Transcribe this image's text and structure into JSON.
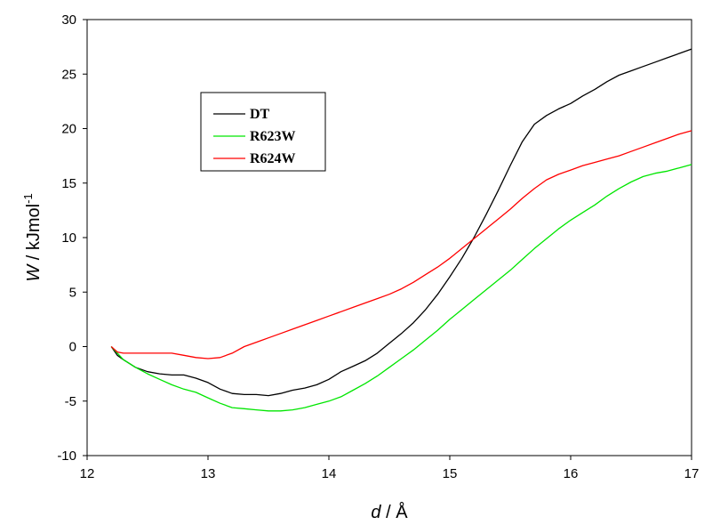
{
  "chart_data": {
    "type": "line",
    "xlabel": {
      "var": "d",
      "unit": " / Å"
    },
    "ylabel": {
      "var": "W",
      "unit": " / kJmol",
      "sup": "-1"
    },
    "xlim": [
      12,
      17
    ],
    "ylim": [
      -10,
      30
    ],
    "xticks": [
      12,
      13,
      14,
      15,
      16,
      17
    ],
    "yticks": [
      -10,
      -5,
      0,
      5,
      10,
      15,
      20,
      25,
      30
    ],
    "grid": false,
    "legend_position": "upper-left",
    "series": [
      {
        "name": "DT",
        "color": "#000000",
        "x": [
          12.2,
          12.25,
          12.3,
          12.4,
          12.5,
          12.6,
          12.7,
          12.8,
          12.9,
          13.0,
          13.1,
          13.2,
          13.3,
          13.4,
          13.5,
          13.6,
          13.7,
          13.8,
          13.9,
          14.0,
          14.1,
          14.2,
          14.3,
          14.4,
          14.5,
          14.6,
          14.7,
          14.8,
          14.9,
          15.0,
          15.1,
          15.2,
          15.3,
          15.4,
          15.5,
          15.6,
          15.7,
          15.8,
          15.9,
          16.0,
          16.1,
          16.2,
          16.3,
          16.4,
          16.5,
          16.6,
          16.7,
          16.8,
          16.9,
          17.0
        ],
        "y": [
          0,
          -0.8,
          -1.2,
          -1.9,
          -2.3,
          -2.5,
          -2.6,
          -2.6,
          -2.9,
          -3.3,
          -3.9,
          -4.3,
          -4.4,
          -4.4,
          -4.5,
          -4.3,
          -4.0,
          -3.8,
          -3.5,
          -3.0,
          -2.3,
          -1.8,
          -1.3,
          -0.6,
          0.3,
          1.2,
          2.2,
          3.4,
          4.8,
          6.4,
          8.1,
          10.0,
          12.1,
          14.3,
          16.6,
          18.8,
          20.4,
          21.2,
          21.8,
          22.3,
          23.0,
          23.6,
          24.3,
          24.9,
          25.3,
          25.7,
          26.1,
          26.5,
          26.9,
          27.3
        ]
      },
      {
        "name": "R623W",
        "color": "#00e600",
        "x": [
          12.2,
          12.3,
          12.4,
          12.5,
          12.6,
          12.7,
          12.8,
          12.9,
          13.0,
          13.1,
          13.2,
          13.3,
          13.4,
          13.5,
          13.6,
          13.7,
          13.8,
          13.9,
          14.0,
          14.1,
          14.2,
          14.3,
          14.4,
          14.5,
          14.6,
          14.7,
          14.8,
          14.9,
          15.0,
          15.1,
          15.2,
          15.3,
          15.4,
          15.5,
          15.6,
          15.7,
          15.8,
          15.9,
          16.0,
          16.1,
          16.2,
          16.3,
          16.4,
          16.5,
          16.6,
          16.7,
          16.8,
          16.9,
          17.0
        ],
        "y": [
          0,
          -1.2,
          -1.9,
          -2.5,
          -3.0,
          -3.5,
          -3.9,
          -4.2,
          -4.7,
          -5.2,
          -5.6,
          -5.7,
          -5.8,
          -5.9,
          -5.9,
          -5.8,
          -5.6,
          -5.3,
          -5.0,
          -4.6,
          -4.0,
          -3.4,
          -2.7,
          -1.9,
          -1.1,
          -0.3,
          0.6,
          1.5,
          2.5,
          3.4,
          4.3,
          5.2,
          6.1,
          7.0,
          8.0,
          9.0,
          9.9,
          10.8,
          11.6,
          12.3,
          13.0,
          13.8,
          14.5,
          15.1,
          15.6,
          15.9,
          16.1,
          16.4,
          16.7
        ]
      },
      {
        "name": "R624W",
        "color": "#ff0000",
        "x": [
          12.2,
          12.25,
          12.3,
          12.4,
          12.5,
          12.6,
          12.7,
          12.8,
          12.9,
          13.0,
          13.1,
          13.2,
          13.3,
          13.4,
          13.5,
          13.6,
          13.7,
          13.8,
          13.9,
          14.0,
          14.1,
          14.2,
          14.3,
          14.4,
          14.5,
          14.6,
          14.7,
          14.8,
          14.9,
          15.0,
          15.1,
          15.2,
          15.3,
          15.4,
          15.5,
          15.6,
          15.7,
          15.8,
          15.9,
          16.0,
          16.1,
          16.2,
          16.3,
          16.4,
          16.5,
          16.6,
          16.7,
          16.8,
          16.9,
          17.0
        ],
        "y": [
          0,
          -0.5,
          -0.6,
          -0.6,
          -0.6,
          -0.6,
          -0.6,
          -0.8,
          -1.0,
          -1.1,
          -1.0,
          -0.6,
          0.0,
          0.4,
          0.8,
          1.2,
          1.6,
          2.0,
          2.4,
          2.8,
          3.2,
          3.6,
          4.0,
          4.4,
          4.8,
          5.3,
          5.9,
          6.6,
          7.3,
          8.1,
          9.0,
          9.9,
          10.8,
          11.7,
          12.6,
          13.6,
          14.5,
          15.3,
          15.8,
          16.2,
          16.6,
          16.9,
          17.2,
          17.5,
          17.9,
          18.3,
          18.7,
          19.1,
          19.5,
          19.8
        ]
      }
    ]
  }
}
